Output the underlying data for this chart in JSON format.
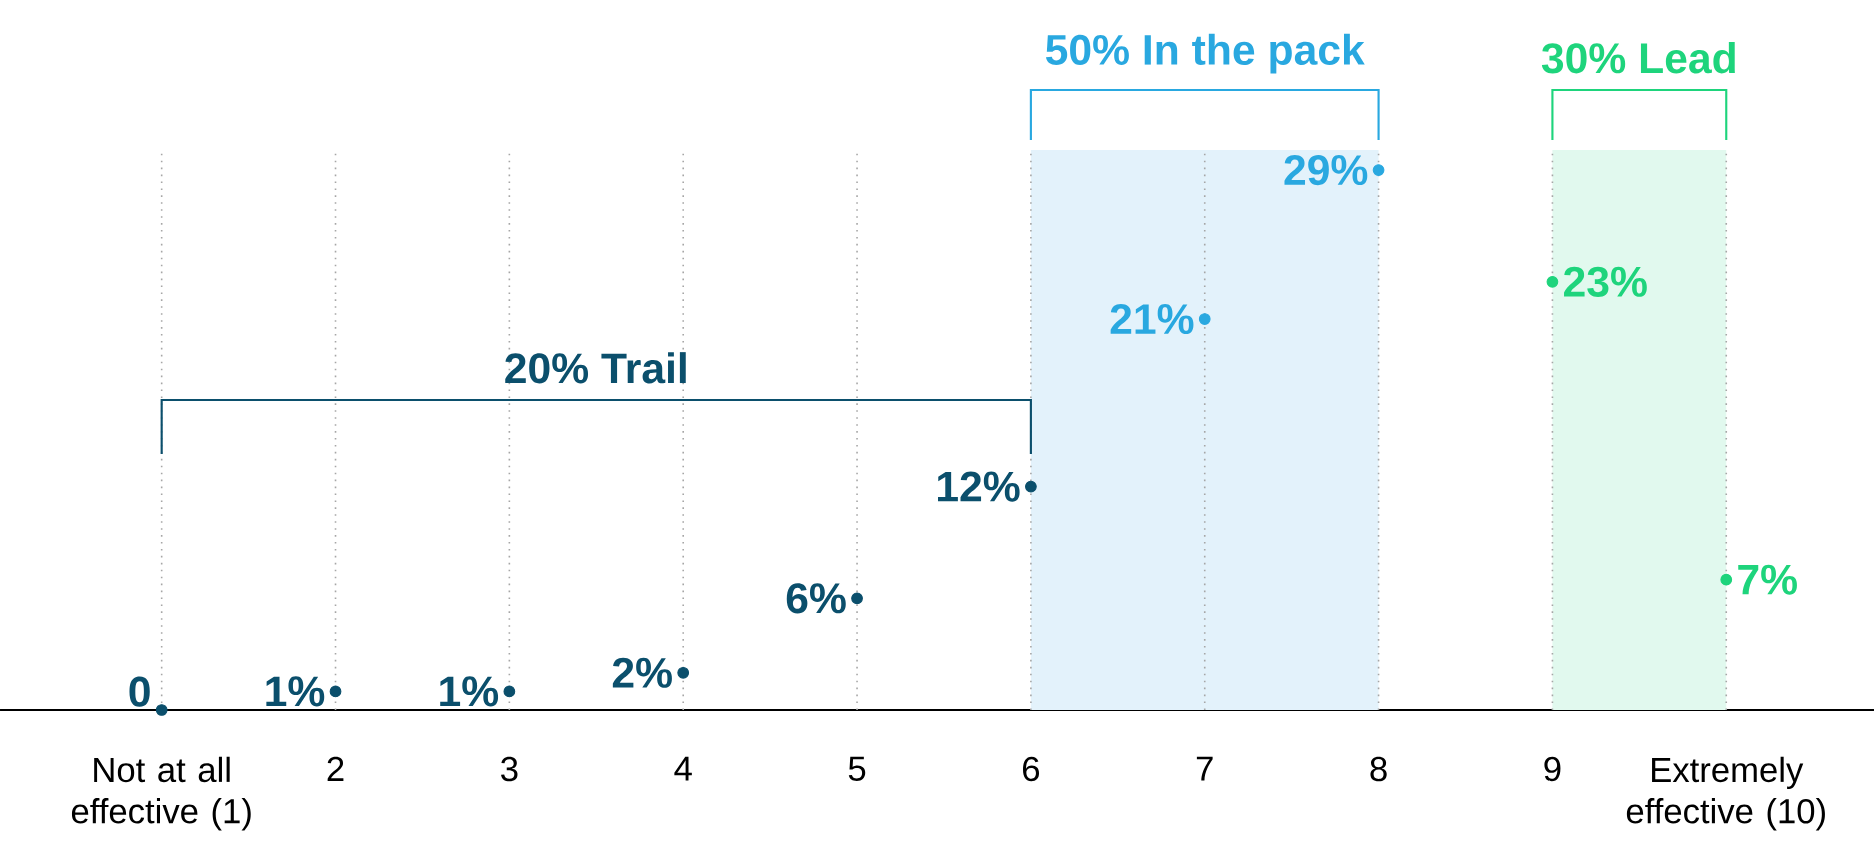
{
  "chart_data": {
    "type": "scatter",
    "categories": [
      "Not at all effective (1)",
      "2",
      "3",
      "4",
      "5",
      "6",
      "7",
      "8",
      "9",
      "Extremely effective (10)"
    ],
    "values": [
      0,
      1,
      1,
      2,
      6,
      12,
      21,
      29,
      23,
      7
    ],
    "value_labels": [
      "0",
      "1%",
      "1%",
      "2%",
      "6%",
      "12%",
      "21%",
      "29%",
      "23%",
      "7%"
    ],
    "colors": [
      "#0b4f6c",
      "#0b4f6c",
      "#0b4f6c",
      "#0b4f6c",
      "#0b4f6c",
      "#0b4f6c",
      "#29a8e0",
      "#29a8e0",
      "#1ed47c",
      "#1ed47c"
    ],
    "bands": [
      {
        "axis": "x",
        "from": "6",
        "to": "8",
        "label": "50% In the pack",
        "color": "#e3f2fb"
      },
      {
        "axis": "x",
        "from": "9",
        "to": "Extremely effective (10)",
        "label": "30% Lead",
        "color": "#e1f9ee"
      }
    ],
    "annotations": [
      "20% Trail"
    ],
    "grid": "x",
    "marker": "circle"
  }
}
